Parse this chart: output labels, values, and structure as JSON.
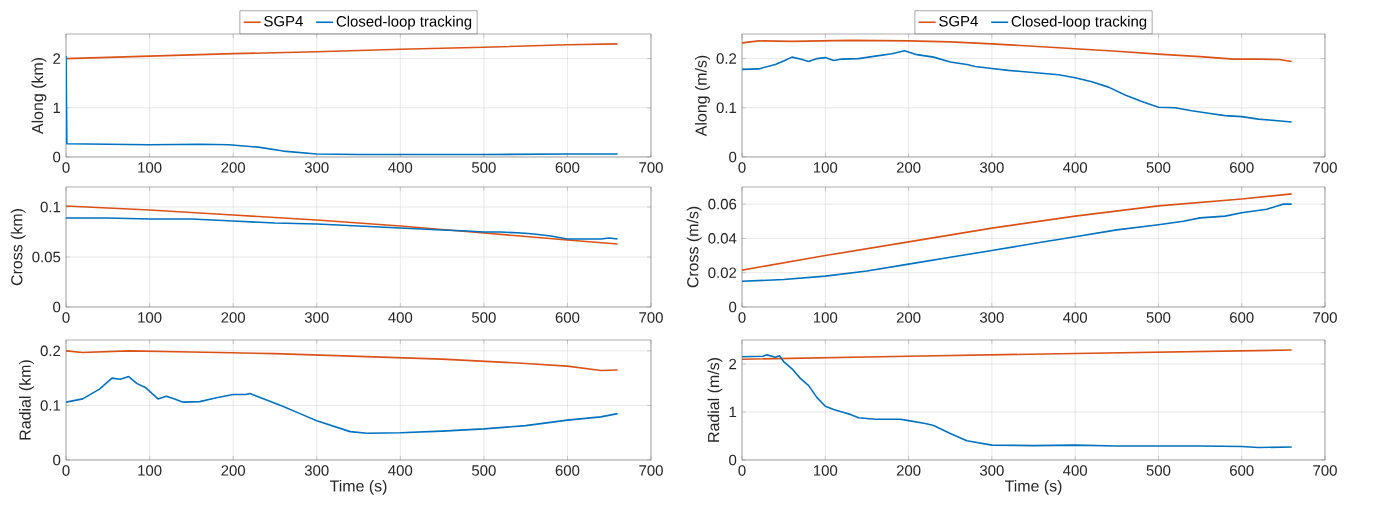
{
  "chart_data": [
    {
      "type": "line",
      "ylabel": "Along (km)",
      "xlim": [
        0,
        700
      ],
      "xticks": [
        0,
        100,
        200,
        300,
        400,
        500,
        600,
        700
      ],
      "ylim": [
        0,
        2.5
      ],
      "yticks": [
        0,
        1,
        2
      ],
      "grid": true,
      "legend": "top",
      "series": [
        {
          "name": "SGP4",
          "color": "#d95319",
          "x": [
            0,
            100,
            200,
            300,
            400,
            500,
            600,
            660
          ],
          "values": [
            2.0,
            2.05,
            2.1,
            2.14,
            2.19,
            2.23,
            2.28,
            2.3
          ]
        },
        {
          "name": "Closed-loop tracking",
          "color": "#0072bd",
          "x": [
            0,
            1,
            50,
            100,
            160,
            195,
            230,
            260,
            300,
            350,
            400,
            500,
            600,
            660
          ],
          "values": [
            2.05,
            0.27,
            0.26,
            0.25,
            0.26,
            0.25,
            0.2,
            0.12,
            0.06,
            0.05,
            0.05,
            0.05,
            0.06,
            0.06
          ]
        }
      ]
    },
    {
      "type": "line",
      "ylabel": "Along (m/s)",
      "xlim": [
        0,
        700
      ],
      "xticks": [
        0,
        100,
        200,
        300,
        400,
        500,
        600,
        700
      ],
      "ylim": [
        0,
        0.25
      ],
      "yticks": [
        0,
        0.1,
        0.2
      ],
      "grid": true,
      "legend": "top",
      "series": [
        {
          "name": "SGP4",
          "color": "#d95319",
          "x": [
            0,
            20,
            60,
            130,
            200,
            250,
            300,
            350,
            400,
            450,
            500,
            550,
            590,
            620,
            645,
            660
          ],
          "values": [
            0.232,
            0.236,
            0.235,
            0.237,
            0.236,
            0.234,
            0.23,
            0.225,
            0.22,
            0.215,
            0.209,
            0.204,
            0.199,
            0.199,
            0.198,
            0.194
          ]
        },
        {
          "name": "Closed-loop tracking",
          "color": "#0072bd",
          "x": [
            0,
            20,
            40,
            50,
            60,
            70,
            80,
            90,
            100,
            110,
            120,
            140,
            160,
            180,
            195,
            210,
            230,
            250,
            270,
            280,
            300,
            320,
            340,
            360,
            380,
            400,
            420,
            440,
            460,
            480,
            500,
            520,
            540,
            560,
            580,
            600,
            620,
            640,
            660
          ],
          "values": [
            0.178,
            0.179,
            0.188,
            0.195,
            0.203,
            0.199,
            0.194,
            0.2,
            0.202,
            0.196,
            0.199,
            0.2,
            0.205,
            0.21,
            0.216,
            0.208,
            0.203,
            0.193,
            0.188,
            0.184,
            0.18,
            0.176,
            0.173,
            0.17,
            0.167,
            0.161,
            0.153,
            0.142,
            0.126,
            0.113,
            0.101,
            0.1,
            0.094,
            0.089,
            0.084,
            0.082,
            0.077,
            0.074,
            0.071
          ]
        }
      ]
    },
    {
      "type": "line",
      "ylabel": "Cross (km)",
      "xlim": [
        0,
        700
      ],
      "xticks": [
        0,
        100,
        200,
        300,
        400,
        500,
        600,
        700
      ],
      "ylim": [
        0,
        0.12
      ],
      "yticks": [
        0,
        0.05,
        0.1
      ],
      "grid": true,
      "series": [
        {
          "color": "#d95319",
          "x": [
            0,
            100,
            200,
            300,
            400,
            500,
            600,
            660
          ],
          "values": [
            0.101,
            0.097,
            0.092,
            0.087,
            0.081,
            0.074,
            0.067,
            0.063
          ]
        },
        {
          "color": "#0072bd",
          "x": [
            0,
            50,
            100,
            150,
            200,
            250,
            300,
            350,
            400,
            450,
            480,
            500,
            520,
            545,
            560,
            580,
            600,
            620,
            640,
            650,
            660
          ],
          "values": [
            0.089,
            0.089,
            0.088,
            0.088,
            0.086,
            0.084,
            0.083,
            0.081,
            0.079,
            0.077,
            0.076,
            0.075,
            0.075,
            0.074,
            0.073,
            0.071,
            0.068,
            0.068,
            0.068,
            0.069,
            0.068
          ]
        }
      ]
    },
    {
      "type": "line",
      "ylabel": "Cross (m/s)",
      "xlim": [
        0,
        700
      ],
      "xticks": [
        0,
        100,
        200,
        300,
        400,
        500,
        600,
        700
      ],
      "ylim": [
        0,
        0.07
      ],
      "yticks": [
        0,
        0.02,
        0.04,
        0.06
      ],
      "grid": true,
      "series": [
        {
          "color": "#d95319",
          "x": [
            0,
            100,
            200,
            300,
            400,
            500,
            600,
            660
          ],
          "values": [
            0.0215,
            0.03,
            0.038,
            0.046,
            0.053,
            0.059,
            0.063,
            0.066
          ]
        },
        {
          "color": "#0072bd",
          "x": [
            0,
            50,
            100,
            150,
            200,
            250,
            300,
            350,
            400,
            450,
            500,
            530,
            550,
            580,
            600,
            630,
            650,
            660
          ],
          "values": [
            0.015,
            0.016,
            0.018,
            0.021,
            0.025,
            0.029,
            0.033,
            0.037,
            0.041,
            0.045,
            0.048,
            0.05,
            0.052,
            0.053,
            0.055,
            0.057,
            0.06,
            0.06
          ]
        }
      ]
    },
    {
      "type": "line",
      "ylabel": "Radial (km)",
      "xlabel": "Time (s)",
      "xlim": [
        0,
        700
      ],
      "xticks": [
        0,
        100,
        200,
        300,
        400,
        500,
        600,
        700
      ],
      "ylim": [
        0,
        0.22
      ],
      "yticks": [
        0,
        0.1,
        0.2
      ],
      "grid": true,
      "series": [
        {
          "color": "#d95319",
          "x": [
            0,
            20,
            75,
            150,
            250,
            350,
            450,
            550,
            600,
            640,
            660
          ],
          "values": [
            0.2,
            0.197,
            0.2,
            0.198,
            0.195,
            0.19,
            0.185,
            0.177,
            0.172,
            0.164,
            0.165
          ]
        },
        {
          "color": "#0072bd",
          "x": [
            0,
            20,
            40,
            55,
            65,
            75,
            85,
            95,
            110,
            120,
            130,
            140,
            160,
            180,
            200,
            215,
            220,
            240,
            260,
            280,
            300,
            320,
            340,
            360,
            400,
            450,
            500,
            550,
            600,
            640,
            660
          ],
          "values": [
            0.106,
            0.112,
            0.13,
            0.15,
            0.148,
            0.153,
            0.14,
            0.133,
            0.112,
            0.117,
            0.112,
            0.106,
            0.107,
            0.114,
            0.12,
            0.12,
            0.122,
            0.11,
            0.098,
            0.085,
            0.072,
            0.062,
            0.052,
            0.049,
            0.05,
            0.053,
            0.057,
            0.063,
            0.073,
            0.079,
            0.085
          ]
        }
      ]
    },
    {
      "type": "line",
      "ylabel": "Radial (m/s)",
      "xlabel": "Time (s)",
      "xlim": [
        0,
        700
      ],
      "xticks": [
        0,
        100,
        200,
        300,
        400,
        500,
        600,
        700
      ],
      "ylim": [
        0,
        2.5
      ],
      "yticks": [
        0,
        1,
        2
      ],
      "grid": true,
      "series": [
        {
          "color": "#d95319",
          "x": [
            0,
            200,
            400,
            660
          ],
          "values": [
            2.1,
            2.16,
            2.22,
            2.29
          ]
        },
        {
          "color": "#0072bd",
          "x": [
            0,
            25,
            30,
            40,
            45,
            50,
            60,
            70,
            80,
            90,
            100,
            110,
            120,
            130,
            140,
            160,
            190,
            200,
            220,
            230,
            250,
            270,
            300,
            350,
            400,
            450,
            500,
            550,
            600,
            620,
            660
          ],
          "values": [
            2.15,
            2.16,
            2.19,
            2.14,
            2.17,
            2.05,
            1.9,
            1.7,
            1.55,
            1.3,
            1.12,
            1.05,
            1.0,
            0.95,
            0.88,
            0.85,
            0.85,
            0.82,
            0.76,
            0.72,
            0.55,
            0.4,
            0.31,
            0.3,
            0.31,
            0.29,
            0.29,
            0.29,
            0.28,
            0.26,
            0.27
          ]
        }
      ]
    }
  ]
}
